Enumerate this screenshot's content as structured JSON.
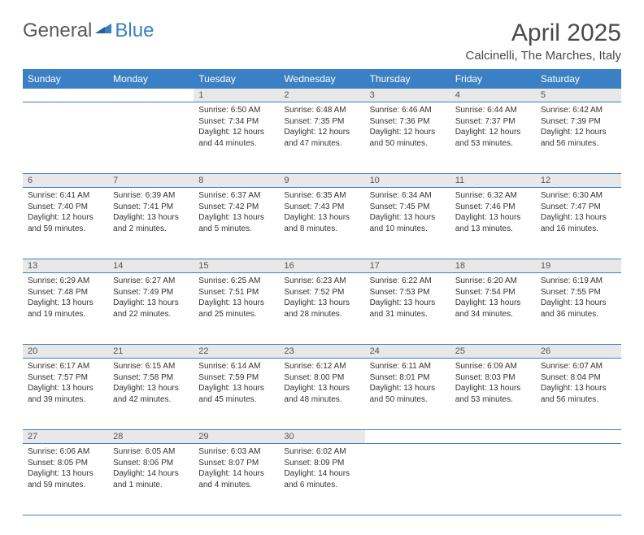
{
  "logo": {
    "text1": "General",
    "text2": "Blue"
  },
  "title": "April 2025",
  "location": "Calcinelli, The Marches, Italy",
  "colors": {
    "header_bg": "#3b7fc4",
    "header_fg": "#ffffff",
    "daynum_bg": "#e8e8e8",
    "rule": "#3b7fc4",
    "text": "#333333",
    "logo_gray": "#5a5a5a",
    "logo_blue": "#3b7fc4"
  },
  "weekdays": [
    "Sunday",
    "Monday",
    "Tuesday",
    "Wednesday",
    "Thursday",
    "Friday",
    "Saturday"
  ],
  "weeks": [
    [
      null,
      null,
      {
        "n": "1",
        "sr": "6:50 AM",
        "ss": "7:34 PM",
        "dl": "12 hours and 44 minutes."
      },
      {
        "n": "2",
        "sr": "6:48 AM",
        "ss": "7:35 PM",
        "dl": "12 hours and 47 minutes."
      },
      {
        "n": "3",
        "sr": "6:46 AM",
        "ss": "7:36 PM",
        "dl": "12 hours and 50 minutes."
      },
      {
        "n": "4",
        "sr": "6:44 AM",
        "ss": "7:37 PM",
        "dl": "12 hours and 53 minutes."
      },
      {
        "n": "5",
        "sr": "6:42 AM",
        "ss": "7:39 PM",
        "dl": "12 hours and 56 minutes."
      }
    ],
    [
      {
        "n": "6",
        "sr": "6:41 AM",
        "ss": "7:40 PM",
        "dl": "12 hours and 59 minutes."
      },
      {
        "n": "7",
        "sr": "6:39 AM",
        "ss": "7:41 PM",
        "dl": "13 hours and 2 minutes."
      },
      {
        "n": "8",
        "sr": "6:37 AM",
        "ss": "7:42 PM",
        "dl": "13 hours and 5 minutes."
      },
      {
        "n": "9",
        "sr": "6:35 AM",
        "ss": "7:43 PM",
        "dl": "13 hours and 8 minutes."
      },
      {
        "n": "10",
        "sr": "6:34 AM",
        "ss": "7:45 PM",
        "dl": "13 hours and 10 minutes."
      },
      {
        "n": "11",
        "sr": "6:32 AM",
        "ss": "7:46 PM",
        "dl": "13 hours and 13 minutes."
      },
      {
        "n": "12",
        "sr": "6:30 AM",
        "ss": "7:47 PM",
        "dl": "13 hours and 16 minutes."
      }
    ],
    [
      {
        "n": "13",
        "sr": "6:29 AM",
        "ss": "7:48 PM",
        "dl": "13 hours and 19 minutes."
      },
      {
        "n": "14",
        "sr": "6:27 AM",
        "ss": "7:49 PM",
        "dl": "13 hours and 22 minutes."
      },
      {
        "n": "15",
        "sr": "6:25 AM",
        "ss": "7:51 PM",
        "dl": "13 hours and 25 minutes."
      },
      {
        "n": "16",
        "sr": "6:23 AM",
        "ss": "7:52 PM",
        "dl": "13 hours and 28 minutes."
      },
      {
        "n": "17",
        "sr": "6:22 AM",
        "ss": "7:53 PM",
        "dl": "13 hours and 31 minutes."
      },
      {
        "n": "18",
        "sr": "6:20 AM",
        "ss": "7:54 PM",
        "dl": "13 hours and 34 minutes."
      },
      {
        "n": "19",
        "sr": "6:19 AM",
        "ss": "7:55 PM",
        "dl": "13 hours and 36 minutes."
      }
    ],
    [
      {
        "n": "20",
        "sr": "6:17 AM",
        "ss": "7:57 PM",
        "dl": "13 hours and 39 minutes."
      },
      {
        "n": "21",
        "sr": "6:15 AM",
        "ss": "7:58 PM",
        "dl": "13 hours and 42 minutes."
      },
      {
        "n": "22",
        "sr": "6:14 AM",
        "ss": "7:59 PM",
        "dl": "13 hours and 45 minutes."
      },
      {
        "n": "23",
        "sr": "6:12 AM",
        "ss": "8:00 PM",
        "dl": "13 hours and 48 minutes."
      },
      {
        "n": "24",
        "sr": "6:11 AM",
        "ss": "8:01 PM",
        "dl": "13 hours and 50 minutes."
      },
      {
        "n": "25",
        "sr": "6:09 AM",
        "ss": "8:03 PM",
        "dl": "13 hours and 53 minutes."
      },
      {
        "n": "26",
        "sr": "6:07 AM",
        "ss": "8:04 PM",
        "dl": "13 hours and 56 minutes."
      }
    ],
    [
      {
        "n": "27",
        "sr": "6:06 AM",
        "ss": "8:05 PM",
        "dl": "13 hours and 59 minutes."
      },
      {
        "n": "28",
        "sr": "6:05 AM",
        "ss": "8:06 PM",
        "dl": "14 hours and 1 minute."
      },
      {
        "n": "29",
        "sr": "6:03 AM",
        "ss": "8:07 PM",
        "dl": "14 hours and 4 minutes."
      },
      {
        "n": "30",
        "sr": "6:02 AM",
        "ss": "8:09 PM",
        "dl": "14 hours and 6 minutes."
      },
      null,
      null,
      null
    ]
  ],
  "labels": {
    "sunrise": "Sunrise:",
    "sunset": "Sunset:",
    "daylight": "Daylight:"
  }
}
